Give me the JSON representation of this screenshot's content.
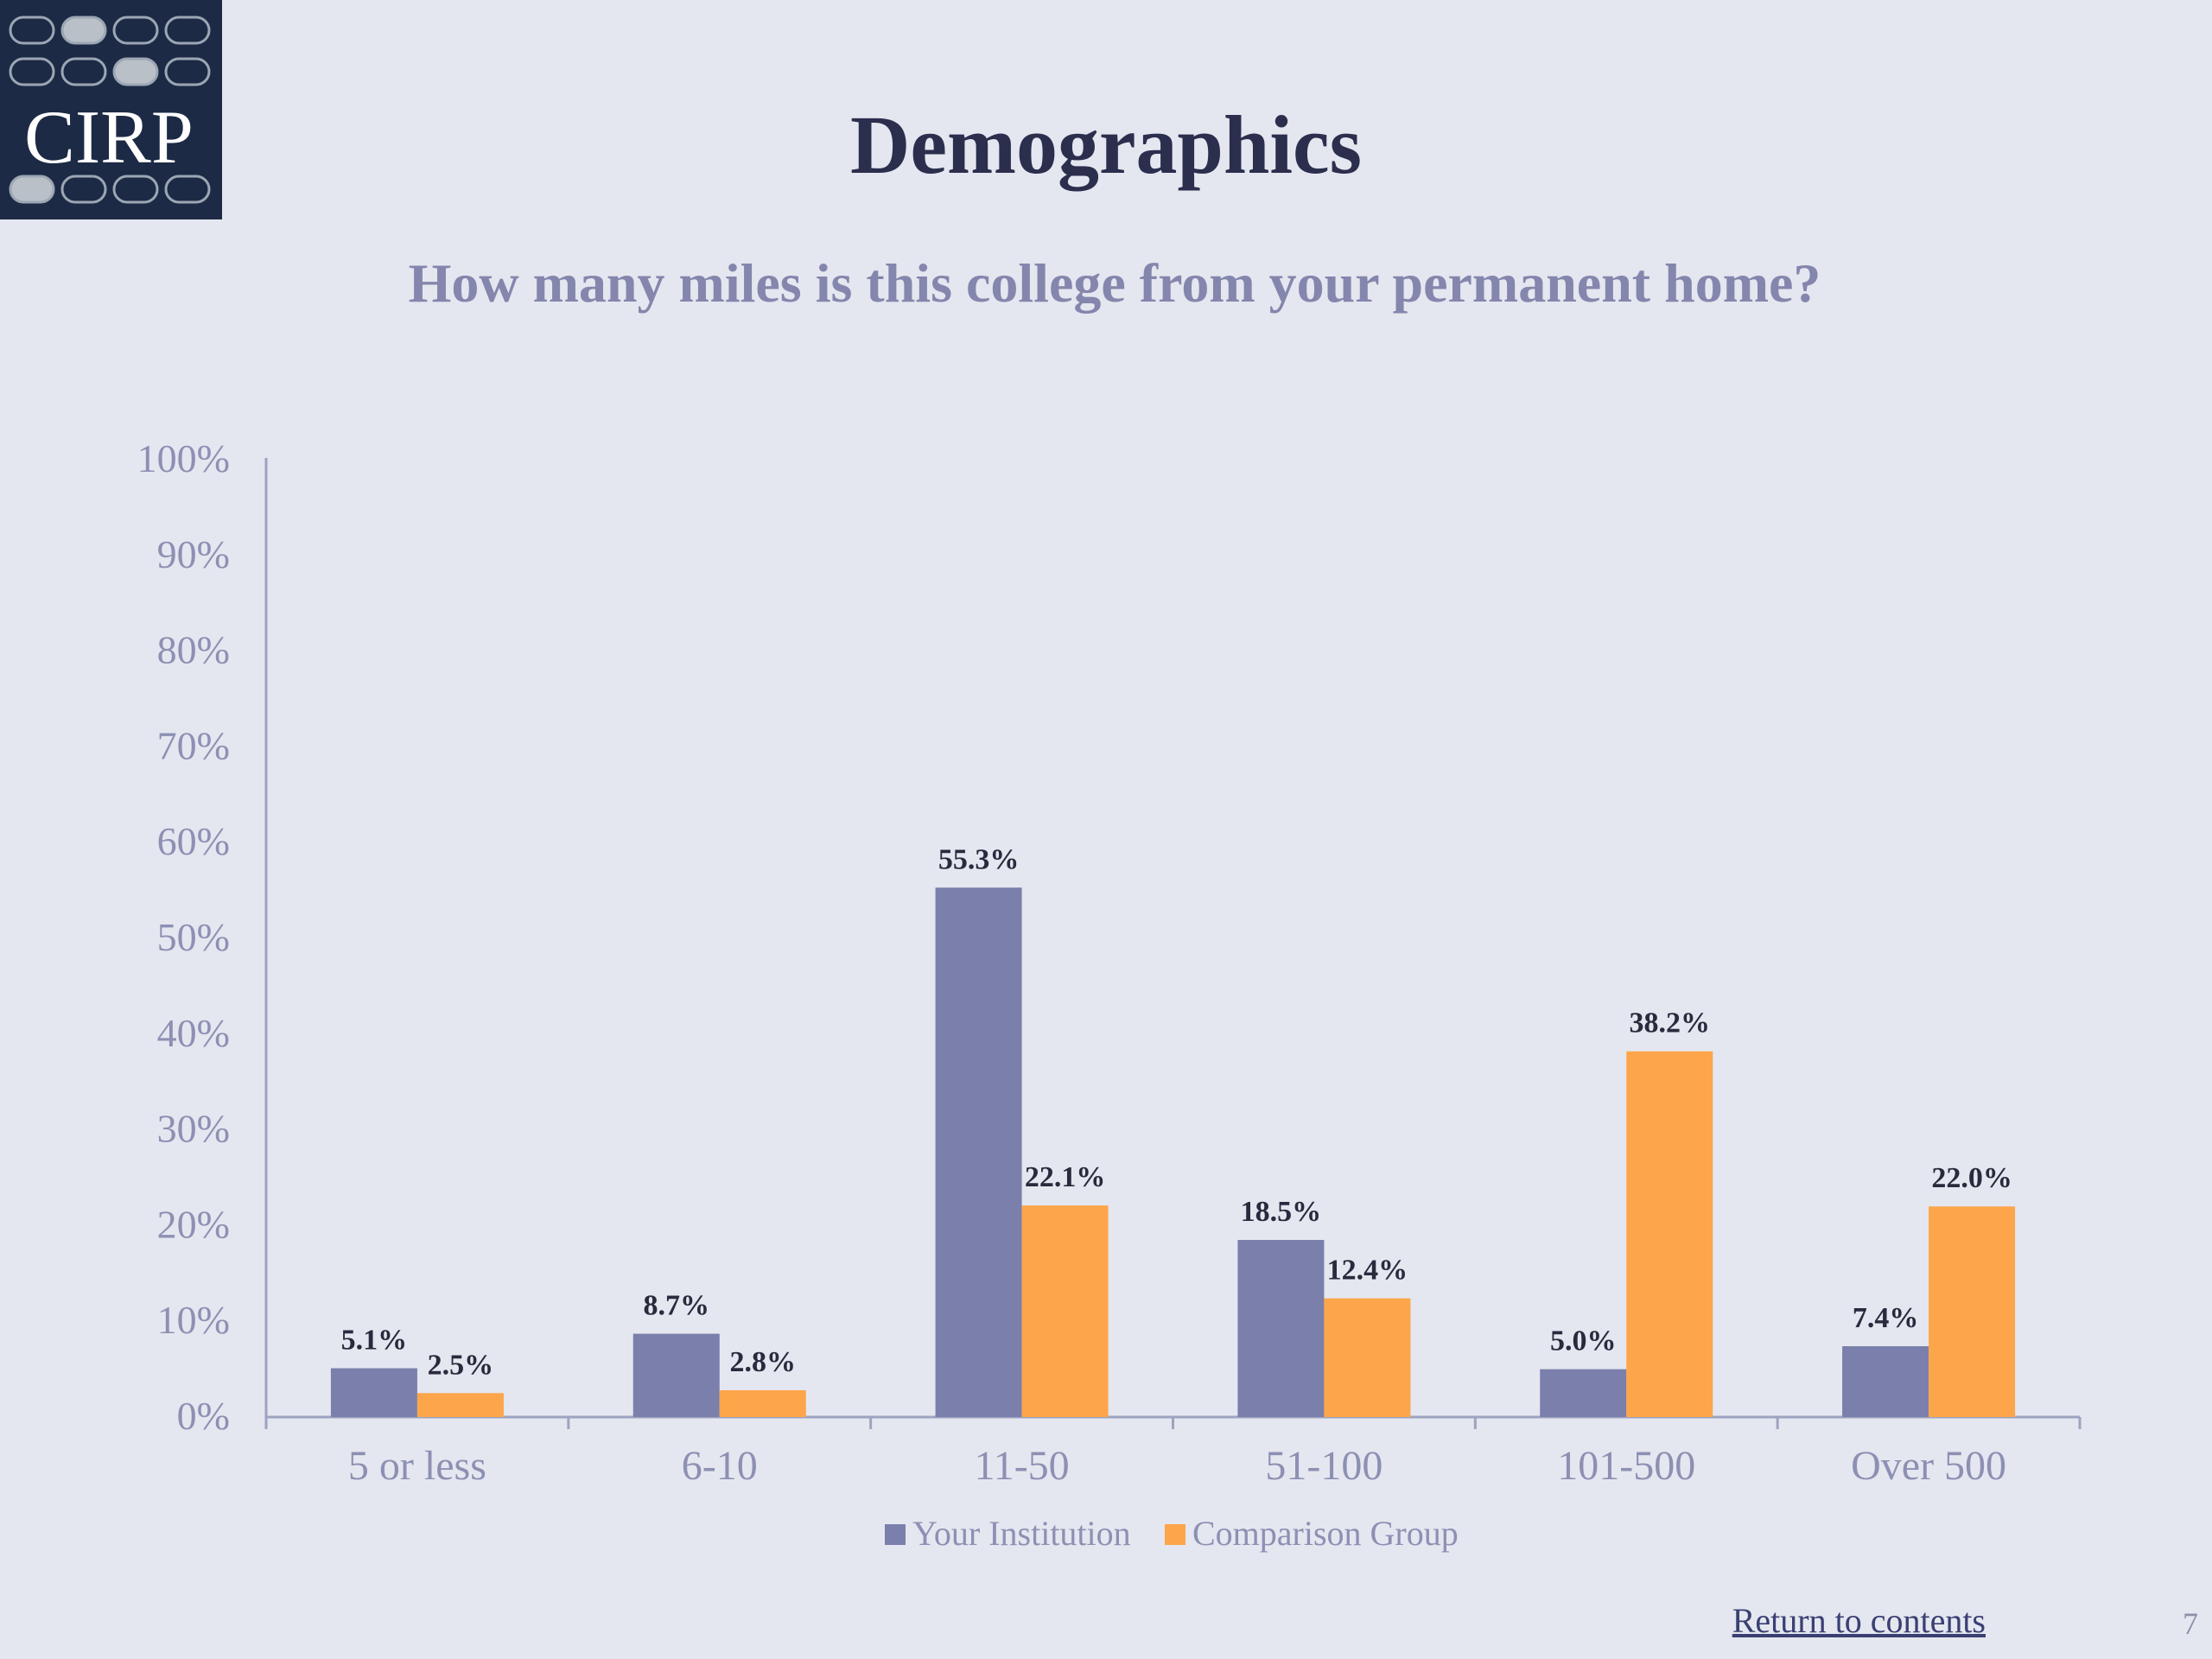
{
  "logo": {
    "text": "CIRP"
  },
  "page": {
    "number": "7"
  },
  "nav": {
    "return_label": "Return to contents"
  },
  "colors": {
    "background": "#e4e7ef",
    "your_institution": "#7a7fab",
    "comparison_group": "#fda54a",
    "title": "#2c2e4e",
    "subtitle": "#8586ad",
    "axis_text": "#8d90b3",
    "data_label": "#2a2a3e"
  },
  "chart_data": {
    "type": "bar",
    "title": "Demographics",
    "subtitle": "How many miles is this college from your permanent home?",
    "categories": [
      "5 or less",
      "6-10",
      "11-50",
      "51-100",
      "101-500",
      "Over 500"
    ],
    "series": [
      {
        "name": "Your Institution",
        "values": [
          5.1,
          8.7,
          55.3,
          18.5,
          5.0,
          7.4
        ],
        "labels": [
          "5.1%",
          "8.7%",
          "55.3%",
          "18.5%",
          "5.0%",
          "7.4%"
        ]
      },
      {
        "name": "Comparison Group",
        "values": [
          2.5,
          2.8,
          22.1,
          12.4,
          38.2,
          22.0
        ],
        "labels": [
          "2.5%",
          "2.8%",
          "22.1%",
          "12.4%",
          "38.2%",
          "22.0%"
        ]
      }
    ],
    "ylim": [
      0,
      100
    ],
    "yticks": [
      "0%",
      "10%",
      "20%",
      "30%",
      "40%",
      "50%",
      "60%",
      "70%",
      "80%",
      "90%",
      "100%"
    ],
    "grid": false,
    "legend": "bottom"
  }
}
